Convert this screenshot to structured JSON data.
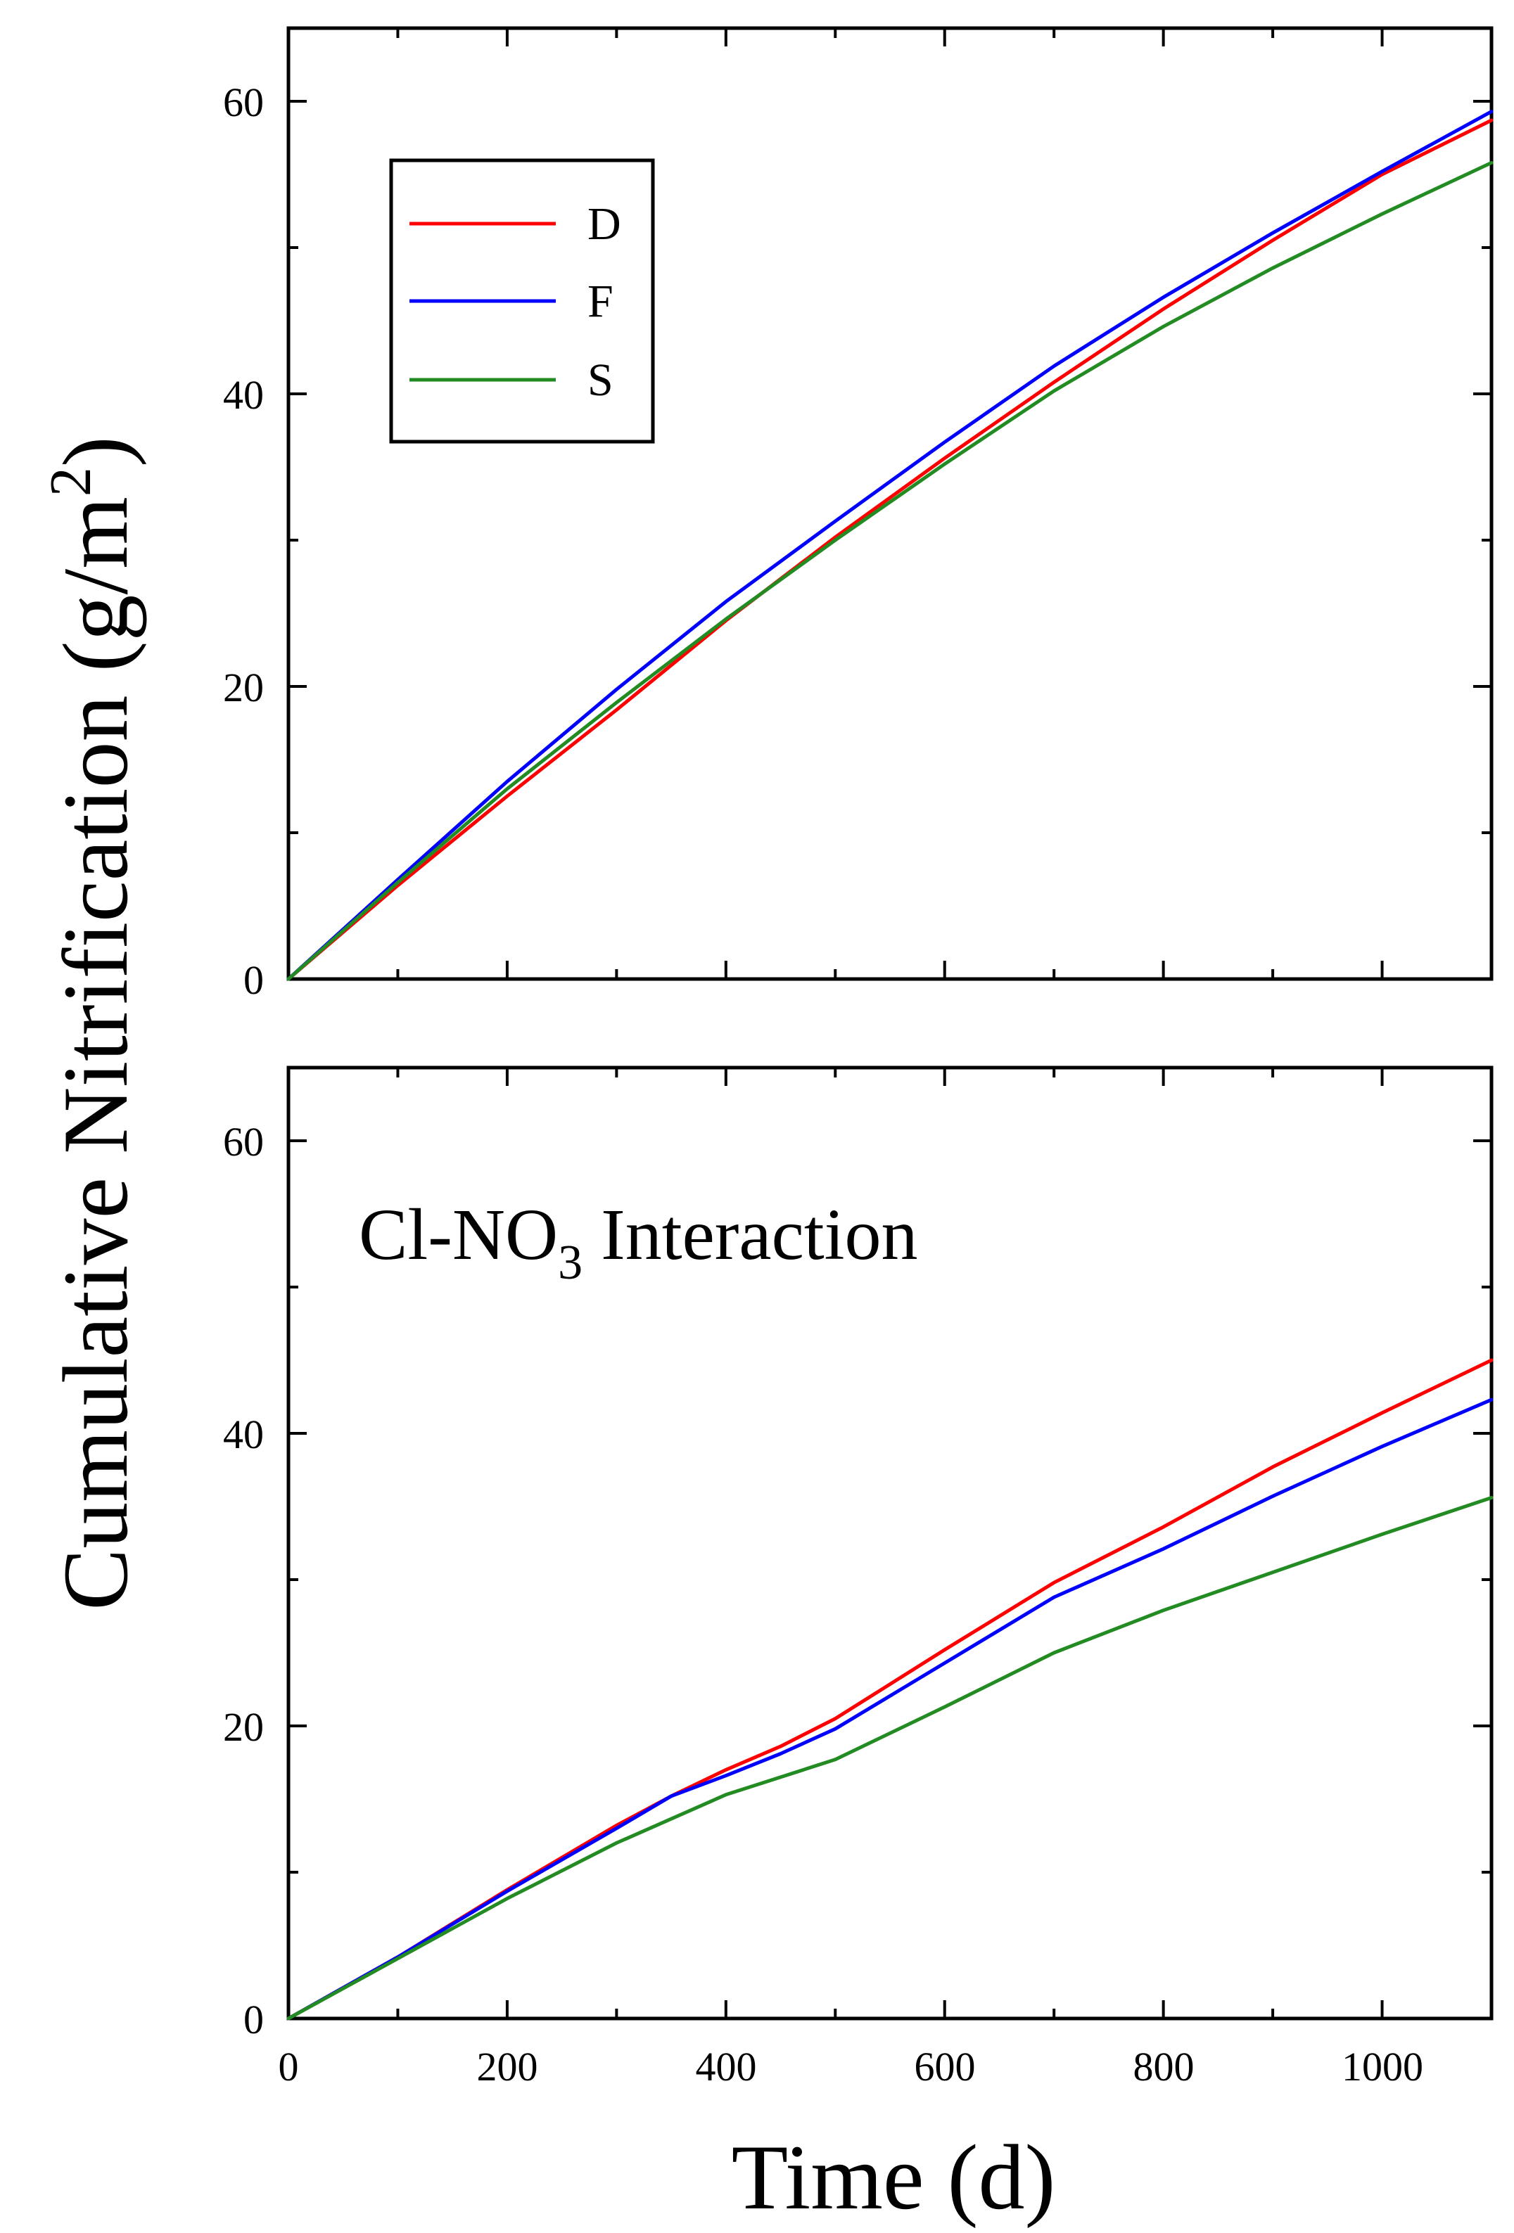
{
  "chart_data": [
    {
      "type": "line",
      "panel": "top",
      "title": "",
      "xlabel": "Time (d)",
      "ylabel": "Cumulative Nitrification (g/m²)",
      "xlim": [
        0,
        1100
      ],
      "ylim": [
        0,
        65
      ],
      "x_ticks": [
        0,
        200,
        400,
        600,
        800,
        1000
      ],
      "y_ticks": [
        0,
        20,
        40,
        60
      ],
      "y_tick_labels": [
        "0",
        "20",
        "40",
        "60"
      ],
      "grid": false,
      "legend": {
        "placement": "top-left",
        "entries": [
          "D",
          "F",
          "S"
        ]
      },
      "series": [
        {
          "name": "D",
          "color": "#ff0000",
          "x": [
            0,
            100,
            200,
            300,
            400,
            500,
            600,
            700,
            800,
            900,
            1000,
            1100
          ],
          "y": [
            0,
            6.4,
            12.5,
            18.4,
            24.5,
            30.2,
            35.6,
            40.8,
            45.8,
            50.5,
            55,
            58.7
          ]
        },
        {
          "name": "F",
          "color": "#0000ff",
          "x": [
            0,
            100,
            200,
            300,
            400,
            500,
            600,
            700,
            800,
            900,
            1000,
            1100
          ],
          "y": [
            0,
            6.8,
            13.5,
            19.8,
            25.8,
            31.3,
            36.7,
            41.9,
            46.6,
            51,
            55.2,
            59.3
          ]
        },
        {
          "name": "S",
          "color": "#228b22",
          "x": [
            0,
            100,
            200,
            300,
            400,
            500,
            600,
            700,
            800,
            900,
            1000,
            1100
          ],
          "y": [
            0,
            6.6,
            13,
            18.9,
            24.6,
            30,
            35.2,
            40.2,
            44.6,
            48.6,
            52.3,
            55.8
          ]
        }
      ]
    },
    {
      "type": "line",
      "panel": "bottom",
      "title": "",
      "annotation": {
        "prefix": "Cl-NO",
        "subscript": "3",
        "suffix": " Interaction"
      },
      "xlabel": "Time (d)",
      "ylabel": "Cumulative Nitrification (g/m²)",
      "xlim": [
        0,
        1100
      ],
      "ylim": [
        0,
        65
      ],
      "x_ticks": [
        0,
        200,
        400,
        600,
        800,
        1000
      ],
      "x_tick_labels": [
        "0",
        "200",
        "400",
        "600",
        "800",
        "1000"
      ],
      "y_ticks": [
        0,
        20,
        40,
        60
      ],
      "y_tick_labels": [
        "0",
        "20",
        "40",
        "60"
      ],
      "grid": false,
      "series": [
        {
          "name": "D",
          "color": "#ff0000",
          "x": [
            0,
            100,
            200,
            300,
            350,
            400,
            450,
            500,
            600,
            700,
            800,
            900,
            1000,
            1100
          ],
          "y": [
            0,
            4.2,
            8.8,
            13.2,
            15.2,
            17,
            18.6,
            20.5,
            25.2,
            29.8,
            33.6,
            37.7,
            41.4,
            45
          ]
        },
        {
          "name": "F",
          "color": "#0000ff",
          "x": [
            0,
            100,
            200,
            300,
            350,
            400,
            450,
            500,
            600,
            700,
            800,
            900,
            1000,
            1100
          ],
          "y": [
            0,
            4.2,
            8.7,
            13,
            15.2,
            16.6,
            18.1,
            19.8,
            24.3,
            28.8,
            32.1,
            35.7,
            39.1,
            42.3
          ]
        },
        {
          "name": "S",
          "color": "#228b22",
          "x": [
            0,
            100,
            200,
            300,
            400,
            500,
            600,
            700,
            800,
            900,
            1000,
            1100
          ],
          "y": [
            0,
            4.1,
            8.2,
            12,
            15.3,
            17.7,
            21.3,
            25,
            27.9,
            30.5,
            33.1,
            35.6
          ]
        }
      ]
    }
  ],
  "figure": {
    "xlabel": "Time (d)",
    "ylabel_main": "Cumulative Nitrification (g/m",
    "ylabel_sup": "2",
    "ylabel_close": ")"
  }
}
